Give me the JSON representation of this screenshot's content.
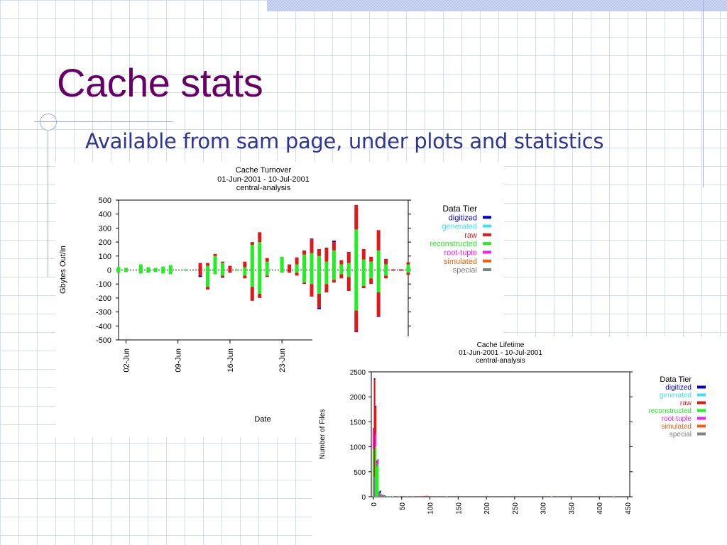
{
  "slide": {
    "title": "Cache stats",
    "bullet": "Available from sam page, under plots and statistics"
  },
  "theme": {
    "title_color": "#660066",
    "subtitle_color": "#2e3596",
    "grid_color": "#d6dcef"
  },
  "chart_data": [
    {
      "type": "bar",
      "title": "Cache Turnover",
      "subtitle_lines": [
        "01-Jun-2001 - 10-Jul-2001",
        "central-analysis"
      ],
      "xlabel": "Date",
      "ylabel": "Gbytes Out/In",
      "ylim": [
        -500,
        500
      ],
      "yticks": [
        500,
        400,
        300,
        200,
        100,
        0,
        -100,
        -200,
        -300,
        -400,
        -500
      ],
      "x_tick_labels": [
        {
          "label": "02-Jun",
          "day": 2
        },
        {
          "label": "09-Jun",
          "day": 9
        },
        {
          "label": "16-Jun",
          "day": 16
        },
        {
          "label": "23-Jun",
          "day": 23
        }
      ],
      "x_domain_days": [
        1,
        40
      ],
      "legend_title": "Data Tier",
      "legend_position": "right",
      "series": [
        {
          "name": "digitized",
          "color": "#0000c8"
        },
        {
          "name": "generated",
          "color": "#40e0f0"
        },
        {
          "name": "raw",
          "color": "#e01818"
        },
        {
          "name": "reconstructed",
          "color": "#20f020"
        },
        {
          "name": "root-tuple",
          "color": "#f020f0"
        },
        {
          "name": "simulated",
          "color": "#f06010"
        },
        {
          "name": "special",
          "color": "#808080"
        }
      ],
      "bars": [
        {
          "day": 1,
          "stack": [
            [
              "reconstructed",
              20,
              -20
            ]
          ]
        },
        {
          "day": 2,
          "stack": [
            [
              "reconstructed",
              15,
              -15
            ]
          ]
        },
        {
          "day": 4,
          "stack": [
            [
              "reconstructed",
              40,
              -25
            ]
          ]
        },
        {
          "day": 5,
          "stack": [
            [
              "reconstructed",
              20,
              -20
            ]
          ]
        },
        {
          "day": 6,
          "stack": [
            [
              "reconstructed",
              15,
              -15
            ]
          ]
        },
        {
          "day": 7,
          "stack": [
            [
              "reconstructed",
              25,
              -25
            ]
          ]
        },
        {
          "day": 8,
          "stack": [
            [
              "reconstructed",
              35,
              -30
            ]
          ]
        },
        {
          "day": 10,
          "stack": [
            [
              "reconstructed",
              5,
              -5
            ]
          ]
        },
        {
          "day": 12,
          "stack": [
            [
              "raw",
              50,
              -40
            ],
            [
              "digitized",
              0,
              -10
            ]
          ]
        },
        {
          "day": 13,
          "stack": [
            [
              "reconstructed",
              30,
              -120
            ],
            [
              "raw",
              20,
              -20
            ]
          ]
        },
        {
          "day": 14,
          "stack": [
            [
              "reconstructed",
              100,
              -30
            ],
            [
              "raw",
              15,
              0
            ]
          ]
        },
        {
          "day": 15,
          "stack": [
            [
              "reconstructed",
              50,
              -40
            ],
            [
              "raw",
              10,
              -10
            ],
            [
              "digitized",
              0,
              -5
            ]
          ]
        },
        {
          "day": 16,
          "stack": [
            [
              "raw",
              30,
              -20
            ]
          ]
        },
        {
          "day": 17,
          "stack": [
            [
              "reconstructed",
              5,
              -5
            ]
          ]
        },
        {
          "day": 18,
          "stack": [
            [
              "reconstructed",
              20,
              -40
            ],
            [
              "raw",
              40,
              -20
            ]
          ]
        },
        {
          "day": 19,
          "stack": [
            [
              "reconstructed",
              180,
              -120
            ],
            [
              "raw",
              20,
              -100
            ]
          ]
        },
        {
          "day": 20,
          "stack": [
            [
              "reconstructed",
              200,
              -170
            ],
            [
              "raw",
              70,
              -30
            ]
          ]
        },
        {
          "day": 21,
          "stack": [
            [
              "reconstructed",
              60,
              -40
            ],
            [
              "raw",
              25,
              -10
            ]
          ]
        },
        {
          "day": 23,
          "stack": [
            [
              "reconstructed",
              95,
              -20
            ]
          ]
        },
        {
          "day": 24,
          "stack": [
            [
              "raw",
              40,
              -20
            ]
          ]
        },
        {
          "day": 25,
          "stack": [
            [
              "reconstructed",
              40,
              -20
            ],
            [
              "raw",
              50,
              -20
            ]
          ]
        },
        {
          "day": 26,
          "stack": [
            [
              "reconstructed",
              110,
              -90
            ],
            [
              "raw",
              30,
              -10
            ]
          ]
        },
        {
          "day": 27,
          "stack": [
            [
              "reconstructed",
              120,
              -100
            ],
            [
              "raw",
              100,
              -90
            ],
            [
              "digitized",
              5,
              0
            ]
          ]
        },
        {
          "day": 28,
          "stack": [
            [
              "reconstructed",
              100,
              -170
            ],
            [
              "raw",
              50,
              -100
            ],
            [
              "digitized",
              0,
              -10
            ]
          ]
        },
        {
          "day": 29,
          "stack": [
            [
              "reconstructed",
              60,
              -100
            ],
            [
              "raw",
              100,
              -60
            ]
          ]
        },
        {
          "day": 30,
          "stack": [
            [
              "reconstructed",
              140,
              -70
            ],
            [
              "raw",
              60,
              -20
            ],
            [
              "digitized",
              10,
              0
            ]
          ]
        },
        {
          "day": 31,
          "stack": [
            [
              "reconstructed",
              40,
              -30
            ],
            [
              "raw",
              30,
              -30
            ]
          ]
        },
        {
          "day": 32,
          "stack": [
            [
              "reconstructed",
              50,
              -50
            ],
            [
              "raw",
              80,
              -100
            ]
          ]
        },
        {
          "day": 33,
          "stack": [
            [
              "reconstructed",
              290,
              -290
            ],
            [
              "raw",
              175,
              -150
            ],
            [
              "digitized",
              0,
              -5
            ]
          ]
        },
        {
          "day": 34,
          "stack": [
            [
              "reconstructed",
              75,
              -115
            ],
            [
              "raw",
              75,
              -15
            ]
          ]
        },
        {
          "day": 35,
          "stack": [
            [
              "reconstructed",
              60,
              -60
            ],
            [
              "raw",
              35,
              -40
            ]
          ]
        },
        {
          "day": 36,
          "stack": [
            [
              "reconstructed",
              140,
              -160
            ],
            [
              "raw",
              145,
              -170
            ],
            [
              "digitized",
              0,
              -5
            ]
          ]
        },
        {
          "day": 37,
          "stack": [
            [
              "reconstructed",
              40,
              -40
            ],
            [
              "raw",
              40,
              -20
            ]
          ]
        },
        {
          "day": 38,
          "stack": [
            [
              "raw",
              5,
              -5
            ]
          ]
        },
        {
          "day": 39,
          "stack": [
            [
              "raw",
              5,
              -5
            ]
          ]
        },
        {
          "day": 40,
          "stack": [
            [
              "reconstructed",
              40,
              -20
            ],
            [
              "raw",
              15,
              -15
            ]
          ]
        }
      ]
    },
    {
      "type": "bar",
      "title": "Cache Lifetime",
      "subtitle_lines": [
        "01-Jun-2001 - 10-Jul-2001",
        "central-analysis"
      ],
      "xlabel": "",
      "ylabel": "Number of Files",
      "ylim": [
        0,
        2500
      ],
      "yticks": [
        2500,
        2000,
        1500,
        1000,
        500,
        0
      ],
      "xlim": [
        0,
        450
      ],
      "xticks": [
        0,
        50,
        100,
        150,
        200,
        250,
        300,
        350,
        400,
        450
      ],
      "legend_title": "Data Tier",
      "legend_position": "right",
      "series": [
        {
          "name": "digitized",
          "color": "#0000c8"
        },
        {
          "name": "generated",
          "color": "#40e0f0"
        },
        {
          "name": "raw",
          "color": "#e01818"
        },
        {
          "name": "reconstructed",
          "color": "#20f020"
        },
        {
          "name": "root-tuple",
          "color": "#f020f0"
        },
        {
          "name": "simulated",
          "color": "#f06010"
        },
        {
          "name": "special",
          "color": "#808080"
        }
      ],
      "bars": [
        {
          "x": 0,
          "stack": [
            [
              "reconstructed",
              950
            ],
            [
              "root-tuple",
              400
            ],
            [
              "digitized",
              20
            ]
          ]
        },
        {
          "x": 2,
          "stack": [
            [
              "root-tuple",
              400
            ],
            [
              "raw",
              1950
            ],
            [
              "digitized",
              20
            ]
          ]
        },
        {
          "x": 4,
          "stack": [
            [
              "reconstructed",
              1000
            ],
            [
              "root-tuple",
              250
            ],
            [
              "raw",
              550
            ],
            [
              "digitized",
              20
            ]
          ]
        },
        {
          "x": 6,
          "stack": [
            [
              "reconstructed",
              600
            ],
            [
              "root-tuple",
              100
            ],
            [
              "digitized",
              20
            ]
          ]
        },
        {
          "x": 8,
          "stack": [
            [
              "reconstructed",
              650
            ],
            [
              "root-tuple",
              100
            ]
          ]
        },
        {
          "x": 10,
          "stack": [
            [
              "root-tuple",
              40
            ],
            [
              "special",
              60
            ]
          ]
        },
        {
          "x": 12,
          "stack": [
            [
              "root-tuple",
              20
            ],
            [
              "special",
              60
            ],
            [
              "digitized",
              40
            ]
          ]
        },
        {
          "x": 14,
          "stack": [
            [
              "special",
              50
            ]
          ]
        },
        {
          "x": 16,
          "stack": [
            [
              "special",
              40
            ]
          ]
        },
        {
          "x": 18,
          "stack": [
            [
              "special",
              40
            ]
          ]
        },
        {
          "x": 20,
          "stack": [
            [
              "special",
              30
            ]
          ]
        },
        {
          "x": 22,
          "stack": [
            [
              "special",
              15
            ]
          ]
        },
        {
          "x": 24,
          "stack": [
            [
              "special",
              10
            ]
          ]
        },
        {
          "x": 26,
          "stack": [
            [
              "reconstructed",
              10
            ]
          ]
        },
        {
          "x": 30,
          "stack": [
            [
              "special",
              8
            ]
          ]
        },
        {
          "x": 34,
          "stack": [
            [
              "special",
              8
            ]
          ]
        },
        {
          "x": 45,
          "stack": [
            [
              "special",
              6
            ]
          ]
        },
        {
          "x": 60,
          "stack": [
            [
              "raw",
              8
            ]
          ]
        },
        {
          "x": 70,
          "stack": [
            [
              "raw",
              8
            ]
          ]
        },
        {
          "x": 90,
          "stack": [
            [
              "raw",
              15
            ]
          ]
        },
        {
          "x": 95,
          "stack": [
            [
              "raw",
              20
            ]
          ]
        },
        {
          "x": 130,
          "stack": [
            [
              "special",
              5
            ]
          ]
        },
        {
          "x": 315,
          "stack": [
            [
              "reconstructed",
              8
            ]
          ]
        },
        {
          "x": 425,
          "stack": [
            [
              "special",
              8
            ]
          ]
        }
      ]
    }
  ]
}
